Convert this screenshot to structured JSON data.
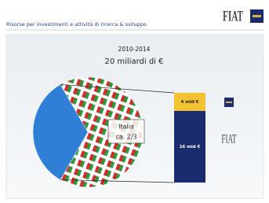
{
  "header": {
    "title": "Risorse per investimenti e attività di ricerca & sviluppo",
    "logo": "FIAT"
  },
  "chart_data": [
    {
      "type": "pie",
      "title": "2010-2014",
      "subtitle": "20 miliardi di €",
      "categories": [
        "Italia",
        null
      ],
      "values": [
        0.667,
        0.333
      ],
      "value_labels": [
        "ca. 2/3",
        null
      ],
      "colors": [
        "pattern-italia",
        "#2f7fd6"
      ]
    },
    {
      "type": "bar",
      "stacked": true,
      "categories": [
        "Italia"
      ],
      "series": [
        {
          "name": null,
          "color": "#1a2c6e",
          "values": [
            16
          ],
          "value_labels": [
            "16 mld €"
          ]
        },
        {
          "name": null,
          "color": "#f2c230",
          "values": [
            4
          ],
          "value_labels": [
            "4 mld €"
          ]
        }
      ]
    }
  ]
}
